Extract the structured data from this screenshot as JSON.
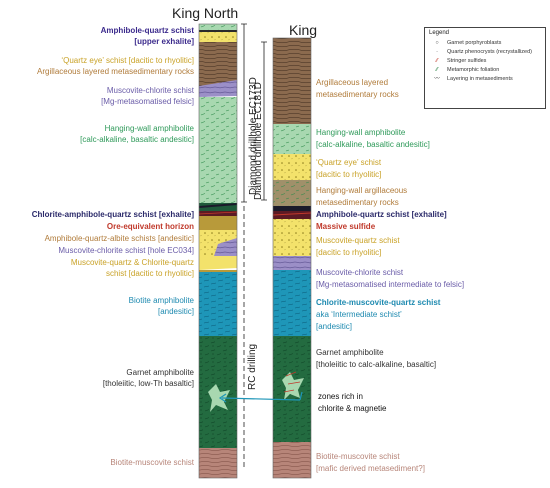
{
  "titles": {
    "left": "King North",
    "right": "King"
  },
  "drillholes": {
    "ec173d": "Diamond drillhole EC173D",
    "ec181d": "Diamond drillhole EC181D",
    "rc": "RC drilling"
  },
  "legend": {
    "title": "Legend",
    "items": [
      {
        "label": "Garnet porphyroblasts",
        "icon": "circle-icon"
      },
      {
        "label": "Quartz phenocrysts (recrystallized)",
        "icon": "dot-icon"
      },
      {
        "label": "Stringer sulfides",
        "icon": "red-dash-icon",
        "color": "#c0392b"
      },
      {
        "label": "Metamorphic foliation",
        "icon": "green-dash-icon",
        "color": "#1e7b3a"
      },
      {
        "label": "Layering in metasediments",
        "icon": "black-line-icon",
        "color": "#000000"
      }
    ]
  },
  "colors": {
    "light_green": "#a8d8b0",
    "brown": "#8b6a4e",
    "yellow": "#f3e26b",
    "purple": "#9b8fc7",
    "teal": "#1e96b8",
    "dark_green": "#236b40",
    "pink_brown": "#b78579",
    "dark_red": "#5c1a24"
  },
  "left_labels": {
    "l1a": "Amphibole-quartz schist",
    "l1b": "[upper exhalite]",
    "l2": "‘Quartz eye’ schist [dacitic to rhyolitic]",
    "l3": "Argillaceous layered metasedimentary rocks",
    "l4a": "Muscovite-chlorite schist",
    "l4b": "[Mg-metasomatised felsic]",
    "l5a": "Hanging-wall amphibolite",
    "l5b": "[calc-alkaline, basaltic andesitic]",
    "l6": "Chlorite-amphibole-quartz schist [exhalite]",
    "l7": "Ore-equivalent horizon",
    "l8": "Amphibole-quartz-albite schists [andesitic]",
    "l9": "Muscovite-chlorite schist [hole EC034]",
    "l10a": "Muscovite-quartz & Chlorite-quartz",
    "l10b": "schist [dacitic to rhyolitic]",
    "l11a": "Biotite amphibolite",
    "l11b": "[andesitic]",
    "l12a": "Garnet amphibolite",
    "l12b": "[tholeiitic, low-Th basaltic]",
    "l13": "Biotite-muscovite schist"
  },
  "right_labels": {
    "r1a": "Argillaceous layered",
    "r1b": "metasedimentary rocks",
    "r2a": "Hanging-wall amphibolite",
    "r2b": "[calc-alkaline, basaltic andesitic]",
    "r3a": "‘Quartz eye’ schist",
    "r3b": "[dacitic to rhyolitic]",
    "r4a": "Hanging-wall argillaceous",
    "r4b": "metasedimentary rocks",
    "r5": "Amphibole-quartz schist [exhalite]",
    "r6": "Massive sulfide",
    "r7a": "Muscovite-quartz schist",
    "r7b": "[dacitic to rhyolitic]",
    "r8a": "Muscovite-chlorite schist",
    "r8b": "[Mg-metasomatised intermediate to felsic]",
    "r9a": "Chlorite-muscovite-quartz schist",
    "r9b": "aka ‘Intermediate schist’",
    "r9c": "[andesitic]",
    "r10a": "Garnet amphibolite",
    "r10b": "[tholeiitic to calc-alkaline, basaltic]",
    "r11a": "Biotite-muscovite schist",
    "r11b": "[mafic derived metasediment?]"
  },
  "annotation": {
    "a1": "zones rich in",
    "a2": "chlorite & magnetie"
  }
}
